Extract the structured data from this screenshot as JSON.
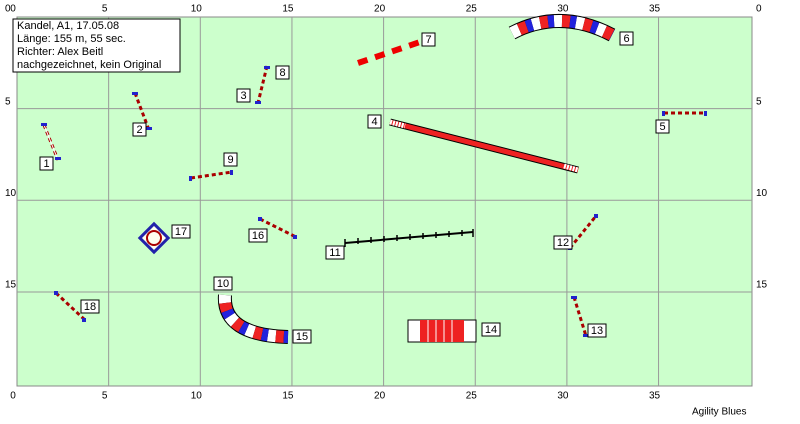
{
  "info": {
    "lines": [
      "Kandel, A1, 17.05.08",
      "Länge: 155 m, 55 sec.",
      "Richter: Alex Beitl",
      "nachgezeichnet, kein Original"
    ]
  },
  "axes": {
    "x_ticks": [
      0,
      5,
      10,
      15,
      20,
      25,
      30,
      35
    ],
    "y_ticks": [
      0,
      5,
      10,
      15
    ]
  },
  "obstacles": [
    {
      "label": "1"
    },
    {
      "label": "2"
    },
    {
      "label": "3"
    },
    {
      "label": "4"
    },
    {
      "label": "5"
    },
    {
      "label": "6"
    },
    {
      "label": "7"
    },
    {
      "label": "8"
    },
    {
      "label": "9"
    },
    {
      "label": "10"
    },
    {
      "label": "11"
    },
    {
      "label": "12"
    },
    {
      "label": "13"
    },
    {
      "label": "14"
    },
    {
      "label": "15"
    },
    {
      "label": "16"
    },
    {
      "label": "17"
    },
    {
      "label": "18"
    }
  ],
  "footer": {
    "text": "Agility Blues"
  }
}
